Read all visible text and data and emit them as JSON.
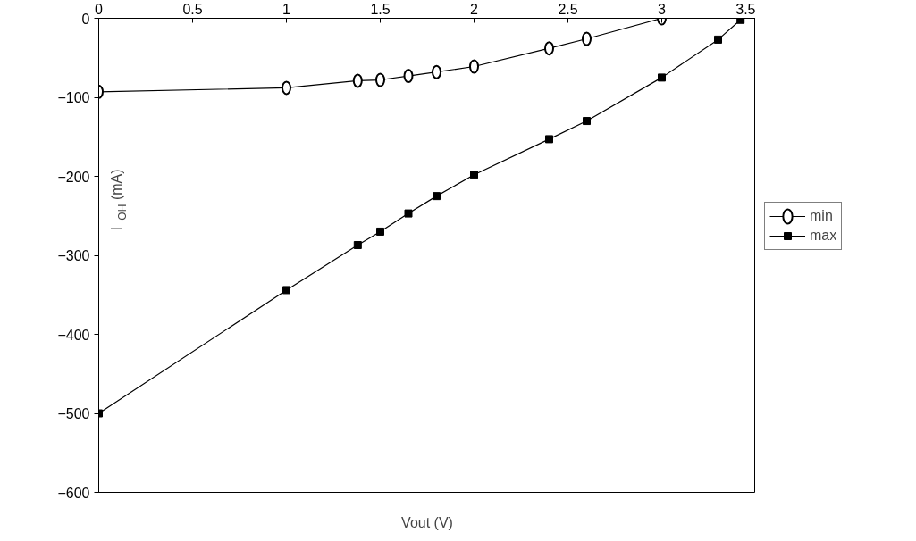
{
  "chart_data": {
    "type": "line",
    "xlabel": "Vout (V)",
    "ylabel": "I$_{OH}$ (mA)",
    "xlim": [
      0,
      3.5
    ],
    "xticks": [
      0,
      0.5,
      1,
      1.5,
      2,
      2.5,
      3,
      3.5
    ],
    "ylim": [
      -600,
      0
    ],
    "yticks": [
      0,
      {
        "value": -100,
        "label": "−100"
      },
      {
        "value": -200,
        "label": "−200"
      },
      {
        "value": -300,
        "label": "−300"
      },
      {
        "value": -400,
        "label": "−400"
      },
      {
        "value": -500,
        "label": "−500"
      },
      {
        "value": -600,
        "label": "−600"
      }
    ],
    "grid": false,
    "legend": "right",
    "line_style": "solid",
    "series": [
      {
        "name": "min",
        "color": "#000000",
        "marker": "circle",
        "x": [
          0,
          1,
          1.38,
          1.5,
          1.65,
          1.8,
          2.0,
          2.4,
          2.6,
          3.0
        ],
        "values": [
          -93,
          -88,
          -79,
          -78,
          -73,
          -68,
          -61,
          -38,
          -26,
          0
        ]
      },
      {
        "name": "max",
        "color": "#000000",
        "marker": "square",
        "x": [
          0,
          1,
          1.38,
          1.5,
          1.65,
          1.8,
          2.0,
          2.4,
          2.6,
          3.0,
          3.3,
          3.42
        ],
        "values": [
          -500,
          -344,
          -287,
          -270,
          -247,
          -225,
          -198,
          -153,
          -130,
          -75,
          -27,
          -2
        ]
      }
    ]
  }
}
